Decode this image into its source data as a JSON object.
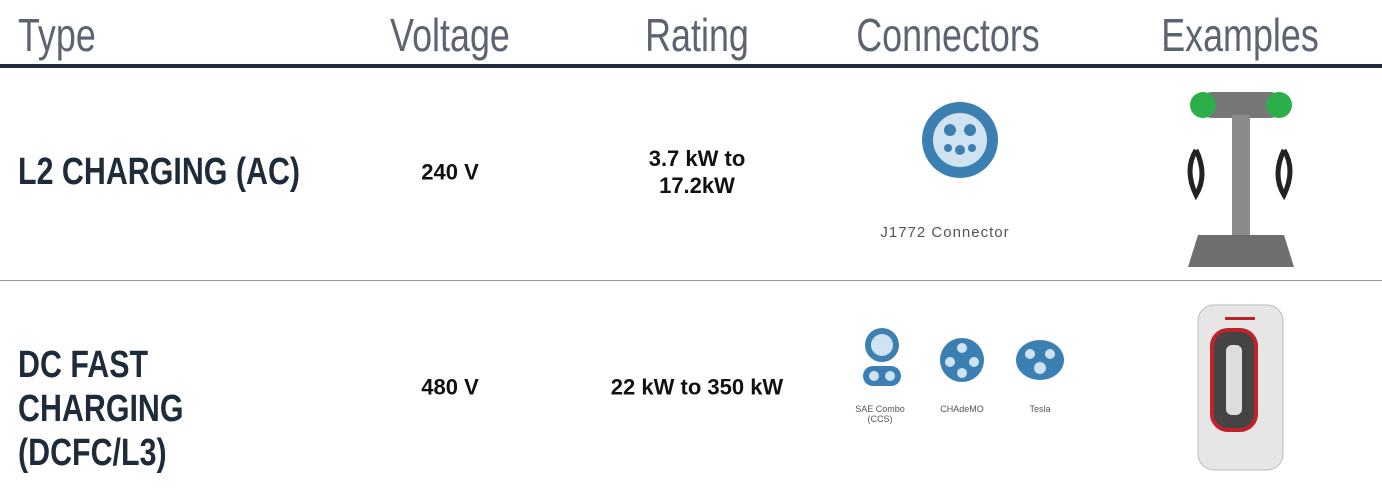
{
  "table": {
    "headers": [
      "Type",
      "Voltage",
      "Rating",
      "Connectors",
      "Examples"
    ],
    "rows": [
      {
        "type": "L2 CHARGING (AC)",
        "voltage": "240 V",
        "rating": "3.7 kW to 17.2kW",
        "connectors": [
          "J1772 Connector"
        ]
      },
      {
        "type": "DC FAST CHARGING (DCFC/L3)",
        "voltage": "480 V",
        "rating": "22 kW to 350 kW",
        "connectors": [
          "SAE Combo (CCS)",
          "CHAdeMO",
          "Tesla"
        ]
      }
    ]
  }
}
